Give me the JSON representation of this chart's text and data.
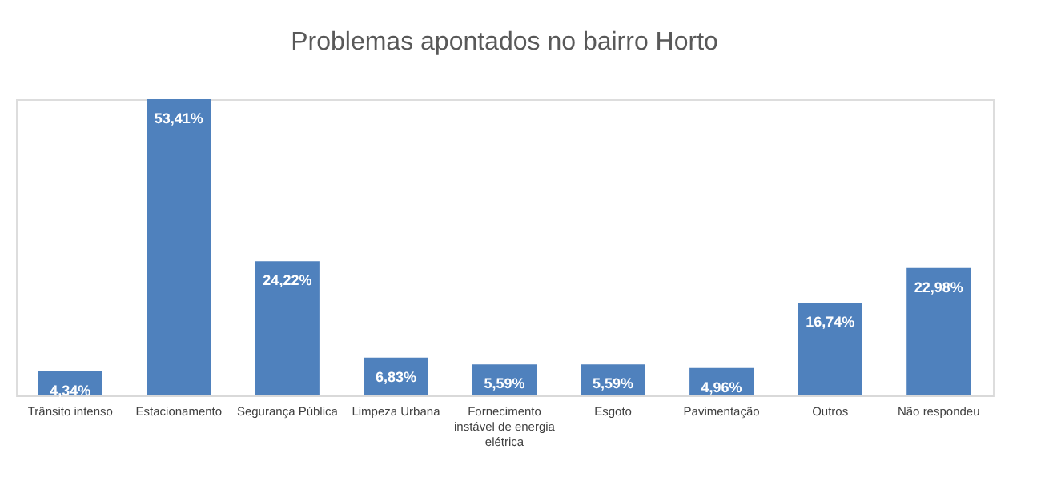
{
  "chart_data": {
    "type": "bar",
    "title": "Problemas apontados no bairro Horto",
    "categories": [
      "Trânsito intenso",
      "Estacionamento",
      "Segurança Pública",
      "Limpeza Urbana",
      "Fornecimento instável de energia elétrica",
      "Esgoto",
      "Pavimentação",
      "Outros",
      "Não respondeu"
    ],
    "values": [
      4.34,
      53.41,
      24.22,
      6.83,
      5.59,
      5.59,
      4.96,
      16.74,
      22.98
    ],
    "value_labels": [
      "4,34%",
      "53,41%",
      "24,22%",
      "6,83%",
      "5,59%",
      "5,59%",
      "4,96%",
      "16,74%",
      "22,98%"
    ],
    "color": "#4f81bd",
    "grid": false
  }
}
